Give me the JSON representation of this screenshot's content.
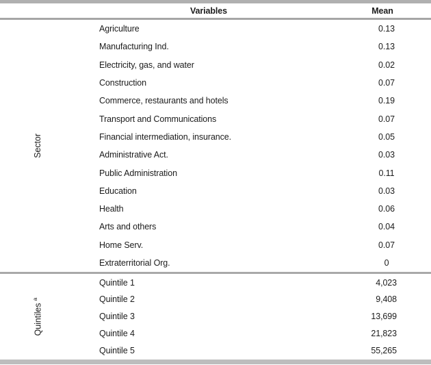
{
  "table": {
    "headers": {
      "variables": "Variables",
      "mean": "Mean"
    },
    "groups": [
      {
        "label": "Sector",
        "superscript": "",
        "rows": [
          {
            "variable": "Agriculture",
            "mean": "0.13"
          },
          {
            "variable": "Manufacturing Ind.",
            "mean": "0.13"
          },
          {
            "variable": "Electricity, gas, and water",
            "mean": "0.02"
          },
          {
            "variable": "Construction",
            "mean": "0.07"
          },
          {
            "variable": "Commerce, restaurants and hotels",
            "mean": "0.19"
          },
          {
            "variable": "Transport and Communications",
            "mean": "0.07"
          },
          {
            "variable": "Financial intermediation, insurance.",
            "mean": "0.05"
          },
          {
            "variable": "Administrative Act.",
            "mean": "0.03"
          },
          {
            "variable": "Public Administration",
            "mean": "0.11"
          },
          {
            "variable": "Education",
            "mean": "0.03"
          },
          {
            "variable": "Health",
            "mean": "0.06"
          },
          {
            "variable": "Arts and others",
            "mean": "0.04"
          },
          {
            "variable": "Home Serv.",
            "mean": "0.07"
          },
          {
            "variable": "Extraterritorial Org.",
            "mean": "0"
          }
        ]
      },
      {
        "label": "Quintiles",
        "superscript": "a",
        "rows": [
          {
            "variable": "Quintile 1",
            "mean": "4,023"
          },
          {
            "variable": "Quintile 2",
            "mean": "9,408"
          },
          {
            "variable": "Quintile 3",
            "mean": "13,699"
          },
          {
            "variable": "Quintile 4",
            "mean": "21,823"
          },
          {
            "variable": "Quintile 5",
            "mean": "55,265"
          }
        ]
      }
    ]
  },
  "colors": {
    "top_bar": "#b0b0b0",
    "header_rule": "#a6a6a6",
    "section_rule": "#a9a9a9",
    "bottom_bar": "#bdbdbd",
    "text": "#1b1b1b"
  }
}
